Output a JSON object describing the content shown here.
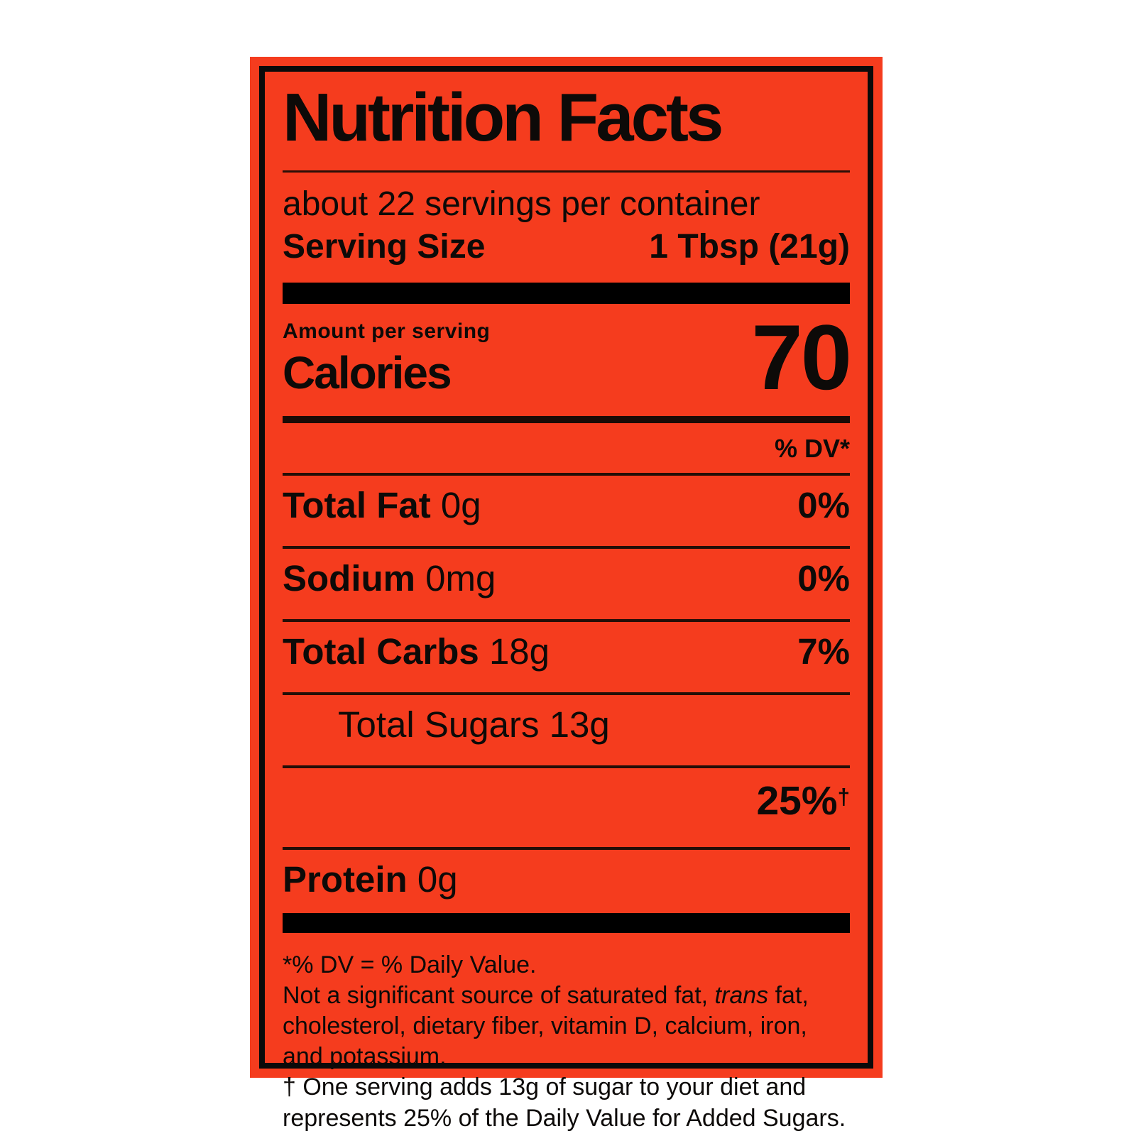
{
  "label": {
    "title": "Nutrition Facts",
    "servings_per_container": "about 22 servings per container",
    "serving_size_label": "Serving Size",
    "serving_size_value": "1 Tbsp (21g)",
    "amount_per_serving": "Amount per serving",
    "calories_label": "Calories",
    "calories_value": "70",
    "dv_header": "% DV*",
    "nutrients": {
      "total_fat": {
        "name": "Total Fat",
        "amount": "0g",
        "dv": "0%"
      },
      "sodium": {
        "name": "Sodium",
        "amount": "0mg",
        "dv": "0%"
      },
      "total_carbs": {
        "name": "Total Carbs",
        "amount": "18g",
        "dv": "7%"
      },
      "total_sugars": {
        "name": "Total Sugars",
        "amount": "13g",
        "dv": ""
      },
      "added_sugars": {
        "name": "",
        "amount": "",
        "dv": "25%",
        "dv_mark": "†"
      },
      "protein": {
        "name": "Protein",
        "amount": "0g",
        "dv": ""
      }
    },
    "footnotes": {
      "dv_definition": "*% DV = % Daily Value.",
      "not_significant_pre": "Not a significant source of saturated fat, ",
      "not_significant_italic": "trans",
      "not_significant_post": " fat, cholesterol, dietary fiber, vitamin D, calcium, iron, and potassium.",
      "added_sugar_note": "† One serving adds 13g of sugar to your diet and represents 25% of the Daily Value for Added Sugars."
    }
  },
  "colors": {
    "label_background": "#f53c1e",
    "text": "#0d0a08",
    "border": "#0a0a0a"
  }
}
